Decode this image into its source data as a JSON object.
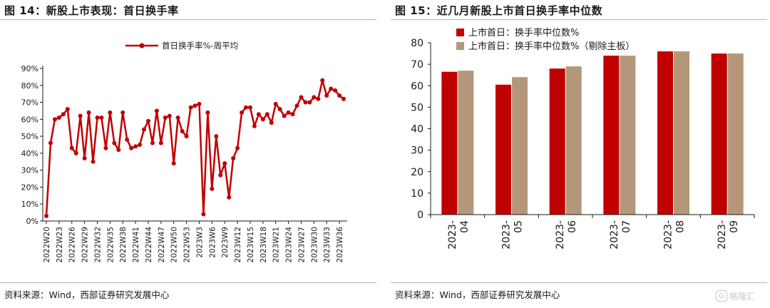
{
  "colors": {
    "series_red": "#c00000",
    "series_tan": "#b4977a",
    "axis": "#1a1a1a",
    "rule": "#b3b3b3"
  },
  "left": {
    "fig_title": "图 14：新股上市表现：首日换手率",
    "source": "资料来源：Wind，西部证券研究发展中心",
    "chart_data": {
      "type": "line",
      "title": "",
      "xlabel": "",
      "ylabel": "",
      "ylim": [
        0,
        90
      ],
      "y_tick_labels": [
        "0%",
        "10%",
        "20%",
        "30%",
        "40%",
        "50%",
        "60%",
        "70%",
        "80%",
        "90%"
      ],
      "x_tick_labels": [
        "2022W20",
        "2022W23",
        "2022W26",
        "2022W29",
        "2022W32",
        "2022W35",
        "2022W38",
        "2022W41",
        "2022W44",
        "2022W47",
        "2022W50",
        "2022W53",
        "2023W3",
        "2023W6",
        "2023W9",
        "2023W12",
        "2023W15",
        "2023W18",
        "2023W21",
        "2023W24",
        "2023W27",
        "2023W30",
        "2023W33",
        "2023W36"
      ],
      "legend": "top-center",
      "grid": false,
      "series": [
        {
          "name": "首日换手率%-周平均",
          "color": "#c00000",
          "marker": "circle",
          "values": [
            3,
            46,
            60,
            61,
            63,
            66,
            43,
            40,
            62,
            37,
            64,
            35,
            61,
            61,
            43,
            64,
            46,
            42,
            64,
            48,
            43,
            44,
            45,
            54,
            59,
            46,
            65,
            46,
            61,
            62,
            34,
            61,
            53,
            50,
            67,
            68,
            69,
            4,
            64,
            19,
            50,
            27,
            34,
            14,
            37,
            43,
            64,
            67,
            67,
            56,
            63,
            60,
            63,
            58,
            69,
            66,
            62,
            64,
            63,
            68,
            73,
            70,
            70,
            73,
            72,
            83,
            74,
            78,
            77,
            74,
            72
          ]
        }
      ]
    }
  },
  "right": {
    "fig_title": "图 15：近几月新股上市首日换手率中位数",
    "source": "资料来源：Wind，西部证券研究发展中心",
    "chart_data": {
      "type": "bar",
      "title": "",
      "xlabel": "",
      "ylabel": "",
      "ylim": [
        0,
        80
      ],
      "y_tick_labels": [
        "0",
        "10",
        "20",
        "30",
        "40",
        "50",
        "60",
        "70",
        "80"
      ],
      "categories": [
        "2023-04",
        "2023-05",
        "2023-06",
        "2023-07",
        "2023-08",
        "2023-09"
      ],
      "category_label_lines": [
        [
          "2023-",
          "04"
        ],
        [
          "2023-",
          "05"
        ],
        [
          "2023-",
          "06"
        ],
        [
          "2023-",
          "07"
        ],
        [
          "2023-",
          "08"
        ],
        [
          "2023-",
          "09"
        ]
      ],
      "legend": "top-left",
      "grid": false,
      "series": [
        {
          "name": "上市首日：换手率中位数%",
          "color": "#c00000",
          "values": [
            66.5,
            60.5,
            68,
            74,
            76,
            75
          ]
        },
        {
          "name": "上市首日：换手率中位数%（剔除主板）",
          "color": "#b4977a",
          "values": [
            67,
            64,
            69,
            74,
            76,
            75
          ]
        }
      ]
    }
  },
  "watermark": {
    "text": "格隆汇",
    "icon": "logo-icon"
  }
}
